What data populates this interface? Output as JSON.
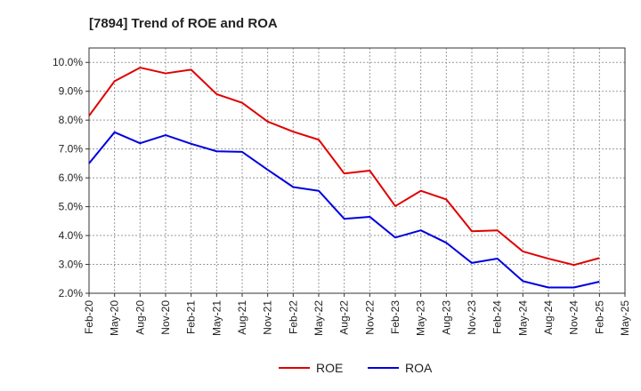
{
  "chart_data": {
    "type": "line",
    "title": "[7894]  Trend of ROE and ROA",
    "xlabel": "",
    "ylabel": "",
    "categories": [
      "Feb-20",
      "May-20",
      "Aug-20",
      "Nov-20",
      "Feb-21",
      "May-21",
      "Aug-21",
      "Nov-21",
      "Feb-22",
      "May-22",
      "Aug-22",
      "Nov-22",
      "Feb-23",
      "May-23",
      "Aug-23",
      "Nov-23",
      "Feb-24",
      "May-24",
      "Aug-24",
      "Nov-24",
      "Feb-25",
      "May-25"
    ],
    "ylim": [
      2.0,
      10.5
    ],
    "yticks": [
      2.0,
      3.0,
      4.0,
      5.0,
      6.0,
      7.0,
      8.0,
      9.0,
      10.0
    ],
    "ytick_labels": [
      "2.0%",
      "3.0%",
      "4.0%",
      "5.0%",
      "6.0%",
      "7.0%",
      "8.0%",
      "9.0%",
      "10.0%"
    ],
    "grid": true,
    "legend_position": "bottom",
    "series": [
      {
        "name": "ROE",
        "color": "#e00000",
        "values": [
          8.15,
          9.35,
          9.82,
          9.62,
          9.75,
          8.9,
          8.6,
          7.95,
          7.6,
          7.32,
          6.15,
          6.25,
          5.02,
          5.55,
          5.25,
          4.15,
          4.18,
          3.45,
          3.2,
          2.98,
          3.22,
          null
        ]
      },
      {
        "name": "ROA",
        "color": "#0000e0",
        "values": [
          6.5,
          7.58,
          7.2,
          7.48,
          7.18,
          6.92,
          6.9,
          6.28,
          5.68,
          5.55,
          4.58,
          4.65,
          3.93,
          4.18,
          3.75,
          3.05,
          3.2,
          2.42,
          2.2,
          2.2,
          2.4,
          null
        ]
      }
    ]
  }
}
